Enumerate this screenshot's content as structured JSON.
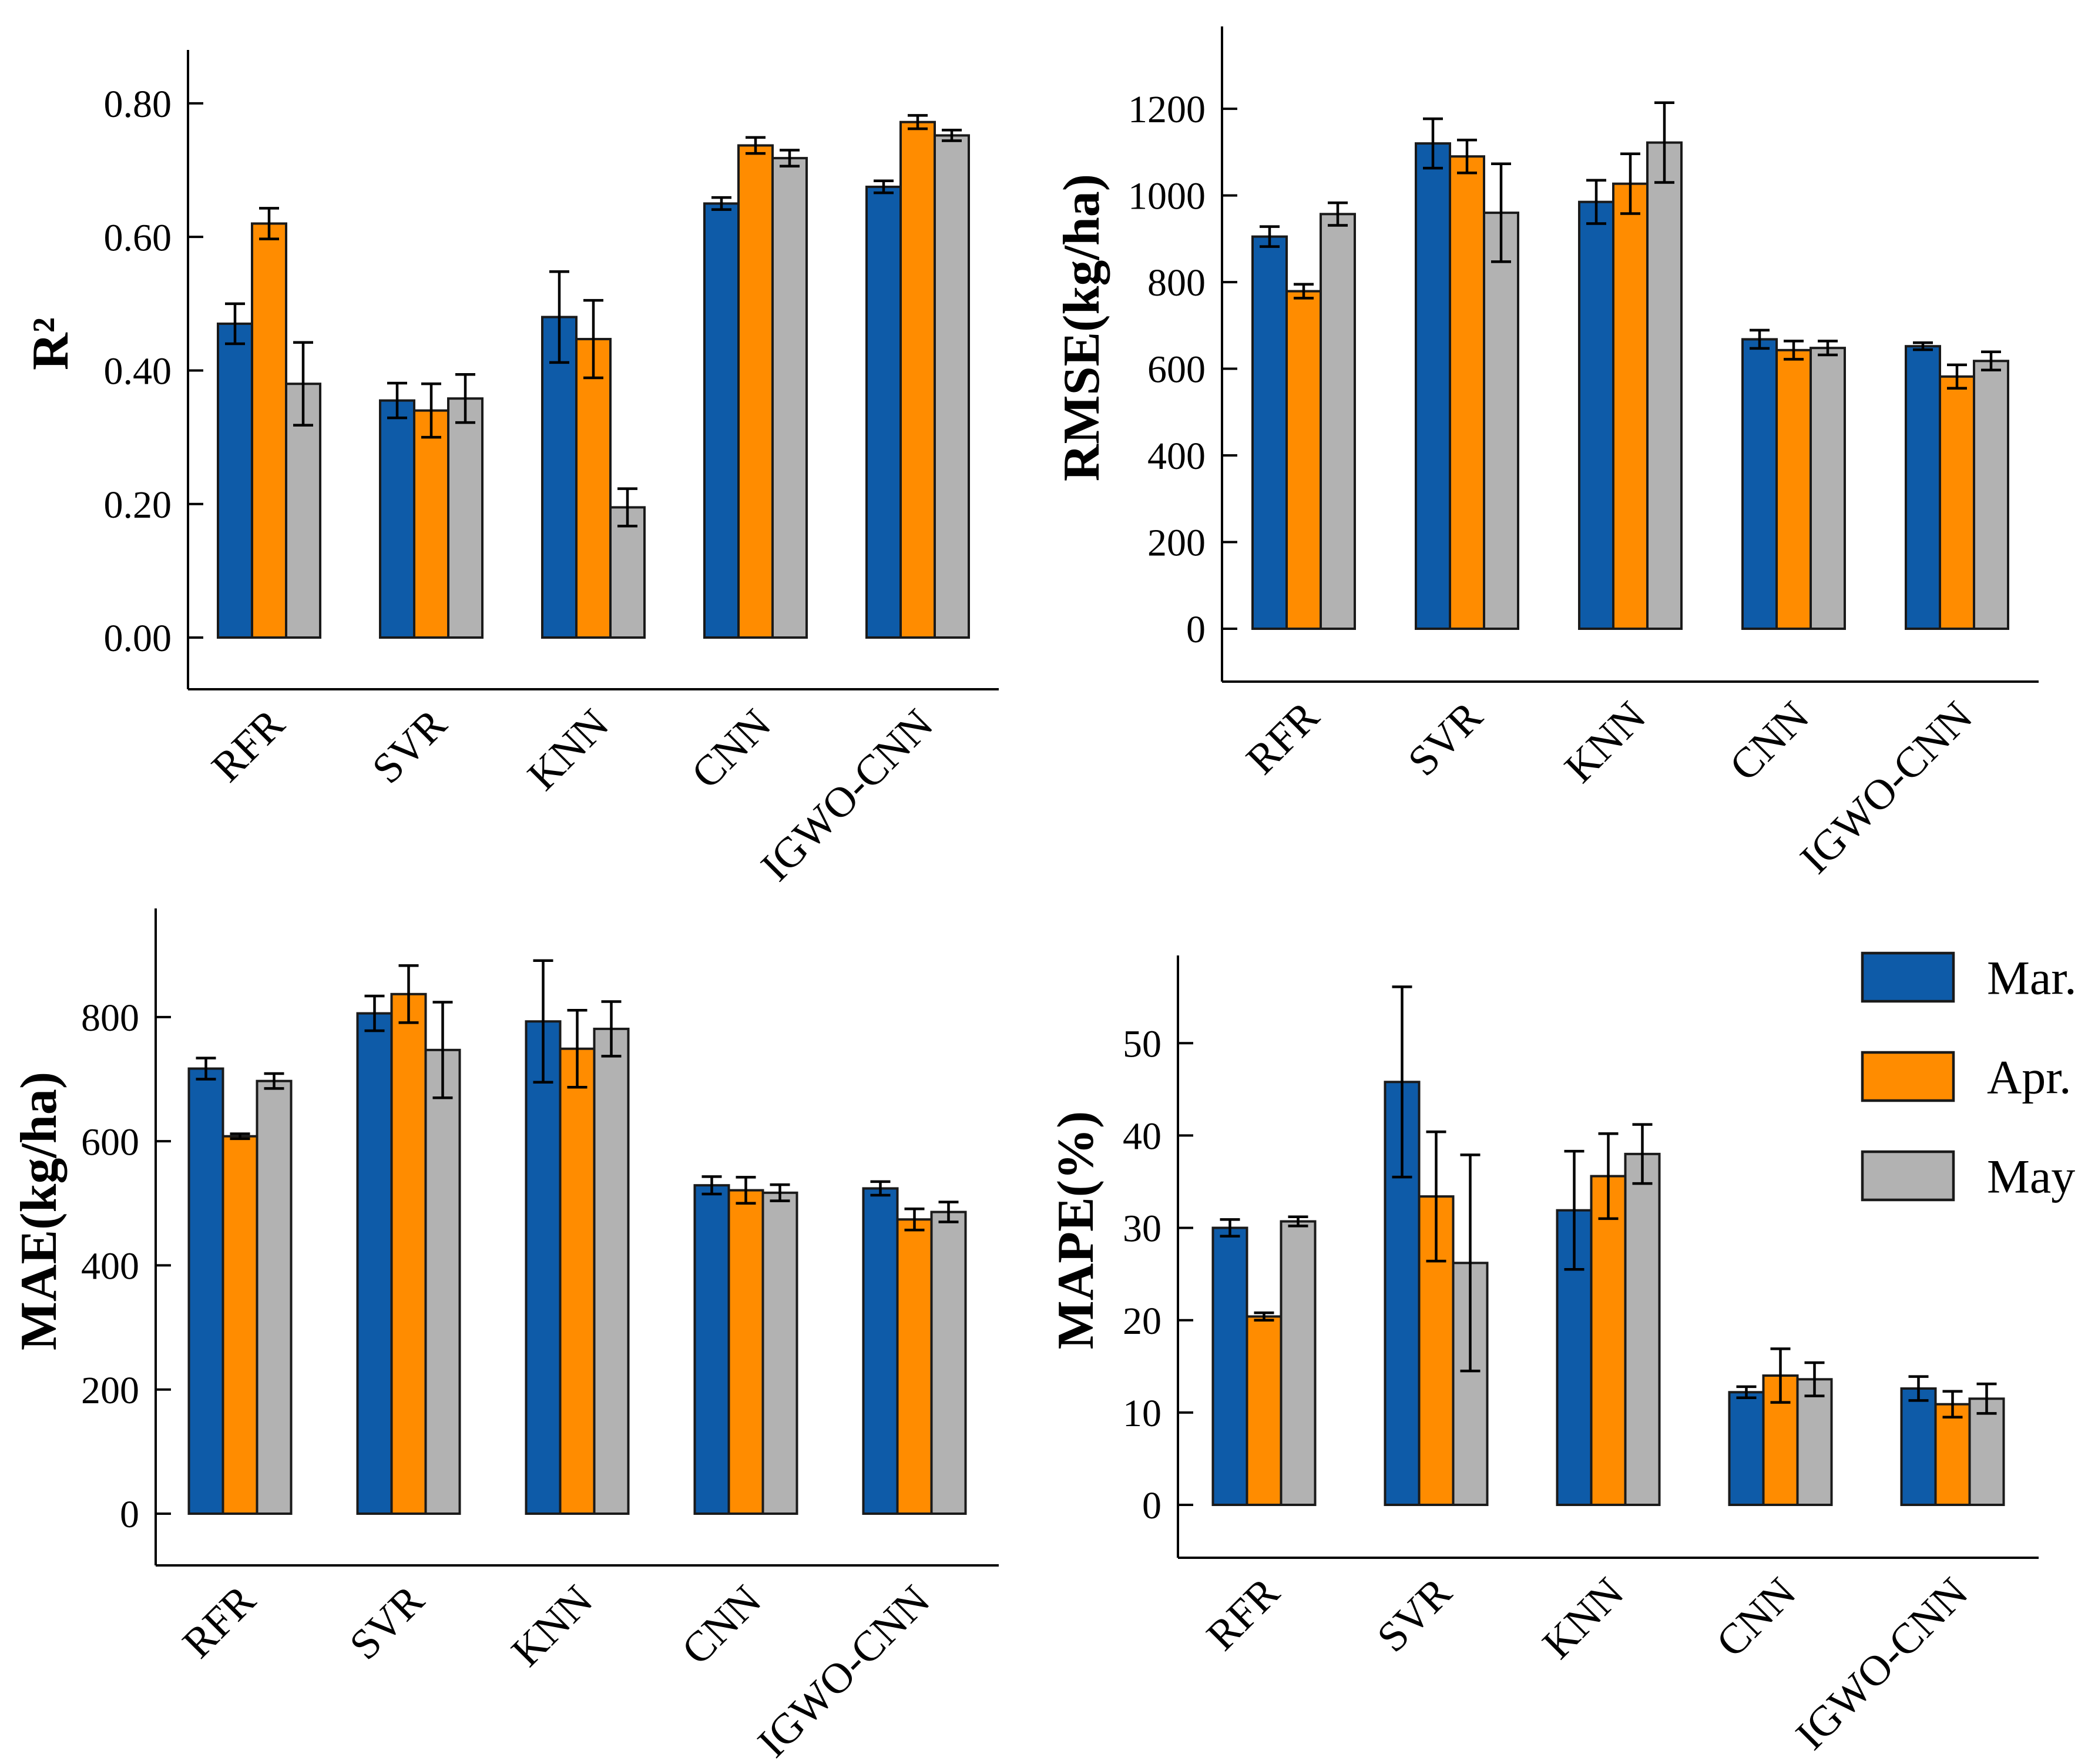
{
  "figure": {
    "background": "#ffffff",
    "description": "2x2 grid of grouped bar charts with error bars comparing regression models by month"
  },
  "colors": {
    "mar": "#0e5ba8",
    "apr": "#ff8c00",
    "may": "#b2b2b2",
    "bar_edge": "#1a1a1a",
    "error_bar": "#000000",
    "axis": "#000000"
  },
  "legend": {
    "items": [
      {
        "label": "Mar.",
        "color_key": "mar"
      },
      {
        "label": "Apr.",
        "color_key": "apr"
      },
      {
        "label": "May",
        "color_key": "may"
      }
    ],
    "position": "upper-right of MAPE subplot"
  },
  "chart_data": [
    {
      "id": "r2",
      "type": "bar",
      "title": "",
      "ylabel": "R²",
      "xlabel": "",
      "categories": [
        "RFR",
        "SVR",
        "KNN",
        "CNN",
        "IGWO-CNN"
      ],
      "series": [
        {
          "name": "Mar.",
          "values": [
            0.47,
            0.355,
            0.48,
            0.65,
            0.675
          ],
          "errors": [
            0.03,
            0.026,
            0.068,
            0.009,
            0.009
          ]
        },
        {
          "name": "Apr.",
          "values": [
            0.62,
            0.34,
            0.447,
            0.737,
            0.772
          ],
          "errors": [
            0.023,
            0.04,
            0.058,
            0.012,
            0.01
          ]
        },
        {
          "name": "May",
          "values": [
            0.38,
            0.358,
            0.195,
            0.718,
            0.752
          ],
          "errors": [
            0.062,
            0.036,
            0.028,
            0.012,
            0.008
          ]
        }
      ],
      "yticks": [
        0.0,
        0.2,
        0.4,
        0.6,
        0.8
      ],
      "ytick_labels": [
        "0.00",
        "0.20",
        "0.40",
        "0.60",
        "0.80"
      ],
      "ylim": [
        0,
        0.88
      ],
      "grid": false,
      "legend": false
    },
    {
      "id": "rmse",
      "type": "bar",
      "title": "",
      "ylabel": "RMSE(kg/ha)",
      "xlabel": "",
      "categories": [
        "RFR",
        "SVR",
        "KNN",
        "CNN",
        "IGWO-CNN"
      ],
      "series": [
        {
          "name": "Mar.",
          "values": [
            905,
            1120,
            985,
            668,
            652
          ],
          "errors": [
            23,
            57,
            50,
            21,
            8
          ]
        },
        {
          "name": "Apr.",
          "values": [
            779,
            1090,
            1027,
            643,
            582
          ],
          "errors": [
            16,
            38,
            69,
            21,
            27
          ]
        },
        {
          "name": "May",
          "values": [
            957,
            960,
            1122,
            648,
            618
          ],
          "errors": [
            26,
            113,
            92,
            16,
            21
          ]
        }
      ],
      "yticks": [
        0,
        200,
        400,
        600,
        800,
        1000,
        1200
      ],
      "ytick_labels": [
        "0",
        "200",
        "400",
        "600",
        "800",
        "1000",
        "1200"
      ],
      "ylim": [
        0,
        1390
      ],
      "grid": false,
      "legend": false
    },
    {
      "id": "mae",
      "type": "bar",
      "title": "",
      "ylabel": "MAE(kg/ha)",
      "xlabel": "",
      "categories": [
        "RFR",
        "SVR",
        "KNN",
        "CNN",
        "IGWO-CNN"
      ],
      "series": [
        {
          "name": "Mar.",
          "values": [
            717,
            806,
            793,
            529,
            524
          ],
          "errors": [
            17,
            28,
            98,
            14,
            11
          ]
        },
        {
          "name": "Apr.",
          "values": [
            608,
            837,
            749,
            521,
            474
          ],
          "errors": [
            4,
            46,
            62,
            21,
            17
          ]
        },
        {
          "name": "May",
          "values": [
            697,
            747,
            781,
            517,
            486
          ],
          "errors": [
            12,
            77,
            44,
            13,
            16
          ]
        }
      ],
      "yticks": [
        0,
        200,
        400,
        600,
        800
      ],
      "ytick_labels": [
        "0",
        "200",
        "400",
        "600",
        "800"
      ],
      "ylim": [
        0,
        975
      ],
      "grid": false,
      "legend": false
    },
    {
      "id": "mape",
      "type": "bar",
      "title": "",
      "ylabel": "MAPE(%)",
      "xlabel": "",
      "categories": [
        "RFR",
        "SVR",
        "KNN",
        "CNN",
        "IGWO-CNN"
      ],
      "series": [
        {
          "name": "Mar.",
          "values": [
            30.0,
            45.8,
            31.9,
            12.2,
            12.6
          ],
          "errors": [
            0.9,
            10.3,
            6.4,
            0.6,
            1.3
          ]
        },
        {
          "name": "Apr.",
          "values": [
            20.4,
            33.4,
            35.6,
            14.0,
            10.9
          ],
          "errors": [
            0.4,
            7.0,
            4.6,
            2.9,
            1.4
          ]
        },
        {
          "name": "May",
          "values": [
            30.7,
            26.2,
            38.0,
            13.6,
            11.5
          ],
          "errors": [
            0.5,
            11.7,
            3.2,
            1.8,
            1.6
          ]
        }
      ],
      "yticks": [
        0,
        10,
        20,
        30,
        40,
        50
      ],
      "ytick_labels": [
        "0",
        "10",
        "20",
        "30",
        "40",
        "50"
      ],
      "ylim": [
        0,
        59.5
      ],
      "grid": false,
      "legend": true
    }
  ]
}
